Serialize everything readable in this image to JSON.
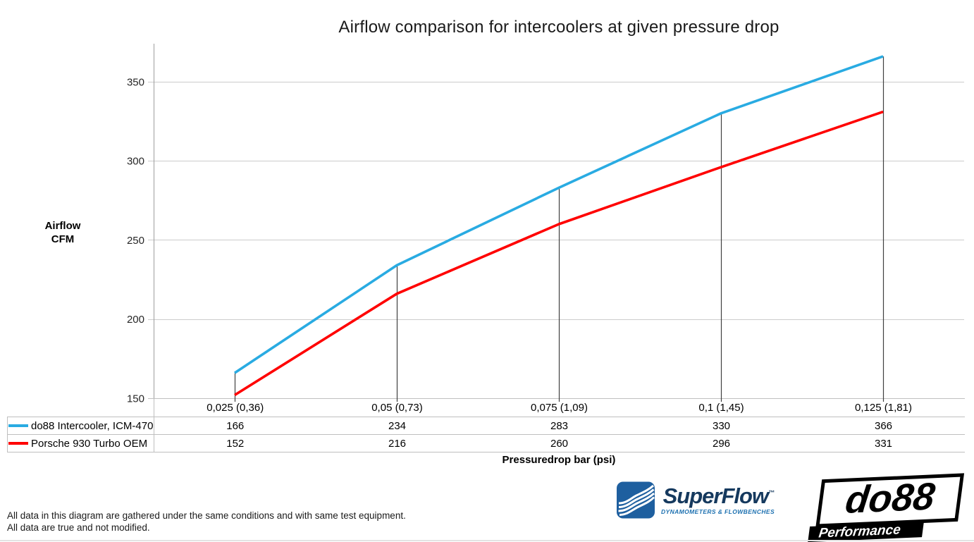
{
  "title": "Airflow comparison for intercoolers at given pressure drop",
  "chart_data": {
    "type": "line",
    "title": "Airflow comparison for intercoolers at given pressure drop",
    "categories": [
      "0,025 (0,36)",
      "0,05 (0,73)",
      "0,075 (1,09)",
      "0,1 (1,45)",
      "0,125 (1,81)"
    ],
    "series": [
      {
        "name": "do88 Intercooler, ICM-470",
        "color": "#29ABE2",
        "values": [
          166,
          234,
          283,
          330,
          366
        ]
      },
      {
        "name": "Porsche 930 Turbo OEM",
        "color": "#FF0000",
        "values": [
          152,
          216,
          260,
          296,
          331
        ]
      }
    ],
    "xlabel": "Pressuredrop bar (psi)",
    "ylabel": "Airflow CFM",
    "ylabel_lines": [
      "Airflow",
      "CFM"
    ],
    "yticks": [
      150,
      200,
      250,
      300,
      350
    ],
    "ylim": [
      150,
      374
    ],
    "grid": "horizontal-only",
    "legend_position": "data-table-left-column",
    "drop_lines_at_points": true,
    "colors": {
      "gridline": "#CCCCCC",
      "axis": "#9E9E9E",
      "table_border": "#BFBFBF",
      "drop_line": "#404040",
      "tick_label": "#262626"
    }
  },
  "footer": {
    "line1": "All data in this diagram are gathered under the same conditions and with same test equipment.",
    "line2": "All data are true and not modified."
  },
  "logos": {
    "superflow": {
      "name": "SuperFlow",
      "trademark": "™",
      "tagline": "DYNAMOMETERS & FLOWBENCHES",
      "brand_blue": "#1E5F9F",
      "text_navy": "#15395E"
    },
    "do88": {
      "name": "do88",
      "tagline": "Performance"
    }
  }
}
